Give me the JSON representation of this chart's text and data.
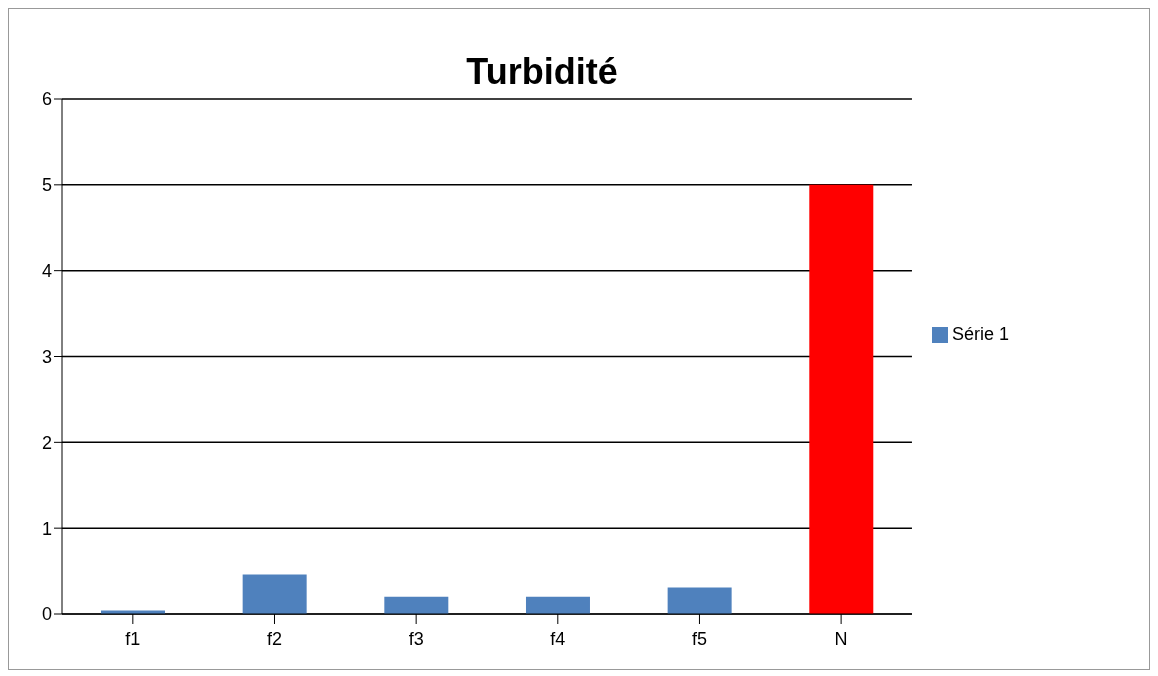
{
  "chart_data": {
    "type": "bar",
    "title": "Turbidité",
    "categories": [
      "f1",
      "f2",
      "f3",
      "f4",
      "f5",
      "N"
    ],
    "series": [
      {
        "name": "Série 1",
        "color": "#4f81bd",
        "colors": [
          "#4f81bd",
          "#4f81bd",
          "#4f81bd",
          "#4f81bd",
          "#4f81bd",
          "#ff0000"
        ],
        "values": [
          0.04,
          0.46,
          0.2,
          0.2,
          0.31,
          5
        ]
      }
    ],
    "ylim": [
      0,
      6
    ],
    "yticks": [
      0,
      1,
      2,
      3,
      4,
      5,
      6
    ],
    "grid": "y",
    "legend": "right"
  }
}
